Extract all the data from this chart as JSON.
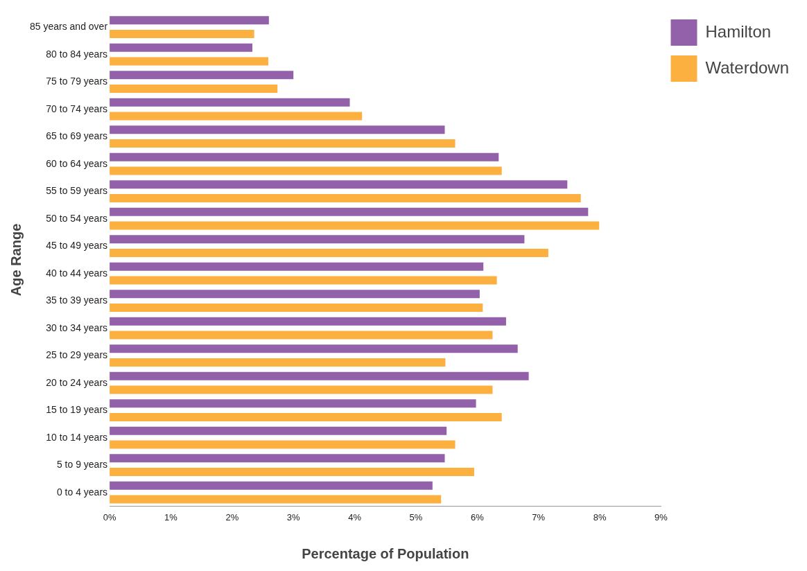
{
  "chart_data": {
    "type": "bar",
    "orientation": "horizontal",
    "xlabel": "Percentage of Population",
    "ylabel": "Age Range",
    "categories": [
      "85 years and over",
      "80 to 84 years",
      "75 to 79 years",
      "70 to 74 years",
      "65 to 69 years",
      "60 to 64 years",
      "55 to 59 years",
      "50 to 54 years",
      "45 to 49 years",
      "40 to 44 years",
      "35 to 39 years",
      "30 to 34 years",
      "25 to 29 years",
      "20 to 24 years",
      "15 to 19 years",
      "10 to 14 years",
      "5 to 9 years",
      "0 to 4 years"
    ],
    "series": [
      {
        "name": "Hamilton",
        "color": "#9261a9",
        "values": [
          2.6,
          2.33,
          3.0,
          3.92,
          5.47,
          6.35,
          7.47,
          7.81,
          6.77,
          6.1,
          6.04,
          6.47,
          6.66,
          6.84,
          5.98,
          5.5,
          5.47,
          5.27
        ]
      },
      {
        "name": "Waterdown",
        "color": "#fbb040",
        "values": [
          2.36,
          2.59,
          2.74,
          4.12,
          5.64,
          6.4,
          7.69,
          7.99,
          7.16,
          6.32,
          6.09,
          6.25,
          5.48,
          6.25,
          6.4,
          5.64,
          5.95,
          5.41
        ]
      }
    ],
    "xlim": [
      0,
      9
    ],
    "xticks": [
      {
        "value": 0,
        "label": "0%"
      },
      {
        "value": 1,
        "label": "1%"
      },
      {
        "value": 2,
        "label": "2%"
      },
      {
        "value": 3,
        "label": "3%"
      },
      {
        "value": 4,
        "label": "4%"
      },
      {
        "value": 5,
        "label": "5%"
      },
      {
        "value": 6,
        "label": "6%"
      },
      {
        "value": 7,
        "label": "7%"
      },
      {
        "value": 8,
        "label": "8%"
      },
      {
        "value": 9,
        "label": "9%"
      }
    ],
    "grid": false,
    "legend": "top right"
  }
}
